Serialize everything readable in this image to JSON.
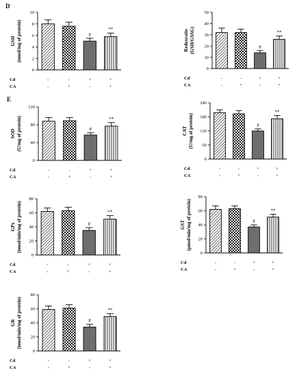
{
  "figure": {
    "panel_labels": [
      "D",
      "E"
    ]
  },
  "colors": {
    "bar_outline": "#000000",
    "bar_group_3_fill": "#6e6e6e",
    "background": "#ffffff"
  },
  "treatment_rows": [
    "Cd",
    "CA"
  ],
  "treatment_signs": {
    "Cd": [
      "-",
      "-",
      "+",
      "+"
    ],
    "CA": [
      "-",
      "+",
      "-",
      "+"
    ]
  },
  "bar_patterns": [
    "diagonal-hatch",
    "checker",
    "solid-grey",
    "vertical-stripes"
  ],
  "chart_data": [
    {
      "type": "bar",
      "ylabel": [
        "GSH",
        "(nmol/mg of protein)"
      ],
      "ylim": [
        0,
        10
      ],
      "yticks": [
        "0",
        "2",
        "4",
        "6",
        "8",
        "10"
      ],
      "values": [
        8.0,
        7.6,
        5.0,
        5.8
      ],
      "errors": [
        0.7,
        0.7,
        0.5,
        0.6
      ],
      "annotations": [
        "",
        "",
        "#",
        "**"
      ]
    },
    {
      "type": "bar",
      "ylabel": [
        "Redoxratio",
        "(GSH/GSSG)"
      ],
      "ylim": [
        0,
        50
      ],
      "yticks": [
        "0",
        "10",
        "20",
        "30",
        "40",
        "50"
      ],
      "values": [
        32,
        32,
        14,
        26
      ],
      "errors": [
        4,
        3,
        2,
        3
      ],
      "annotations": [
        "",
        "",
        "#",
        "**"
      ]
    },
    {
      "type": "bar",
      "ylabel": [
        "SOD",
        "(U/mg of protein)"
      ],
      "ylim": [
        0,
        120
      ],
      "yticks": [
        "0",
        "40",
        "80",
        "120"
      ],
      "values": [
        88,
        89,
        57,
        77
      ],
      "errors": [
        8,
        7,
        5,
        8
      ],
      "annotations": [
        "",
        "",
        "#",
        "**"
      ]
    },
    {
      "type": "bar",
      "ylabel": [
        "CAT",
        "(U/mg of protein)"
      ],
      "ylim": [
        0,
        240
      ],
      "yticks": [
        "0",
        "60",
        "120",
        "180",
        "240"
      ],
      "values": [
        198,
        193,
        120,
        172
      ],
      "errors": [
        12,
        14,
        9,
        14
      ],
      "annotations": [
        "",
        "",
        "#",
        "**"
      ]
    },
    {
      "type": "bar",
      "ylabel": [
        "GPx",
        "(nmol/min/mg of protein)"
      ],
      "ylim": [
        0,
        80
      ],
      "yticks": [
        "0",
        "20",
        "40",
        "60",
        "80"
      ],
      "values": [
        62,
        63,
        35,
        51
      ],
      "errors": [
        5,
        5,
        4,
        5
      ],
      "annotations": [
        "",
        "",
        "#",
        "**"
      ]
    },
    {
      "type": "bar",
      "ylabel": [
        "GST",
        "(μmol/min/mg of protein)"
      ],
      "ylim": [
        0,
        80
      ],
      "yticks": [
        "0",
        "20",
        "40",
        "60",
        "80"
      ],
      "values": [
        62,
        63,
        37,
        51
      ],
      "errors": [
        5,
        4,
        3,
        4
      ],
      "annotations": [
        "",
        "",
        "#",
        "**"
      ]
    },
    {
      "type": "bar",
      "ylabel": [
        "GR",
        "(nmol/min/mg of protein)"
      ],
      "ylim": [
        0,
        80
      ],
      "yticks": [
        "0",
        "20",
        "40",
        "60",
        "80"
      ],
      "values": [
        59,
        61,
        34,
        49
      ],
      "errors": [
        5,
        5,
        4,
        4
      ],
      "annotations": [
        "",
        "",
        "#",
        "**"
      ]
    }
  ]
}
